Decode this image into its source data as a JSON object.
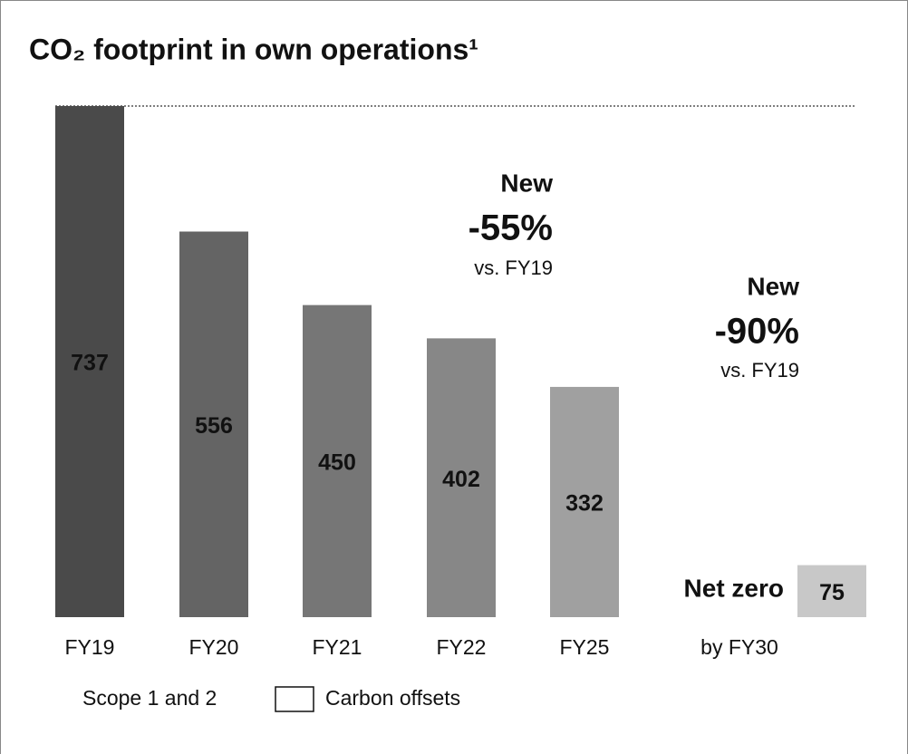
{
  "chart_data": {
    "type": "bar",
    "title": "CO₂ footprint in own operations¹",
    "categories": [
      "FY19",
      "FY20",
      "FY21",
      "FY22",
      "FY25",
      "by FY30"
    ],
    "values": [
      737,
      556,
      450,
      402,
      332,
      75
    ],
    "colors": [
      "#4a4a4a",
      "#646464",
      "#767676",
      "#878787",
      "#a0a0a0",
      "#c8c8c8"
    ],
    "ylim": [
      0,
      737
    ],
    "annotations": [
      {
        "heading": "New",
        "change": "-55%",
        "basis": "vs. FY19"
      },
      {
        "heading": "New",
        "change": "-90%",
        "basis": "vs. FY19"
      }
    ],
    "target_label": "Net zero",
    "legend": [
      "Scope 1 and 2",
      "Carbon offsets"
    ]
  }
}
